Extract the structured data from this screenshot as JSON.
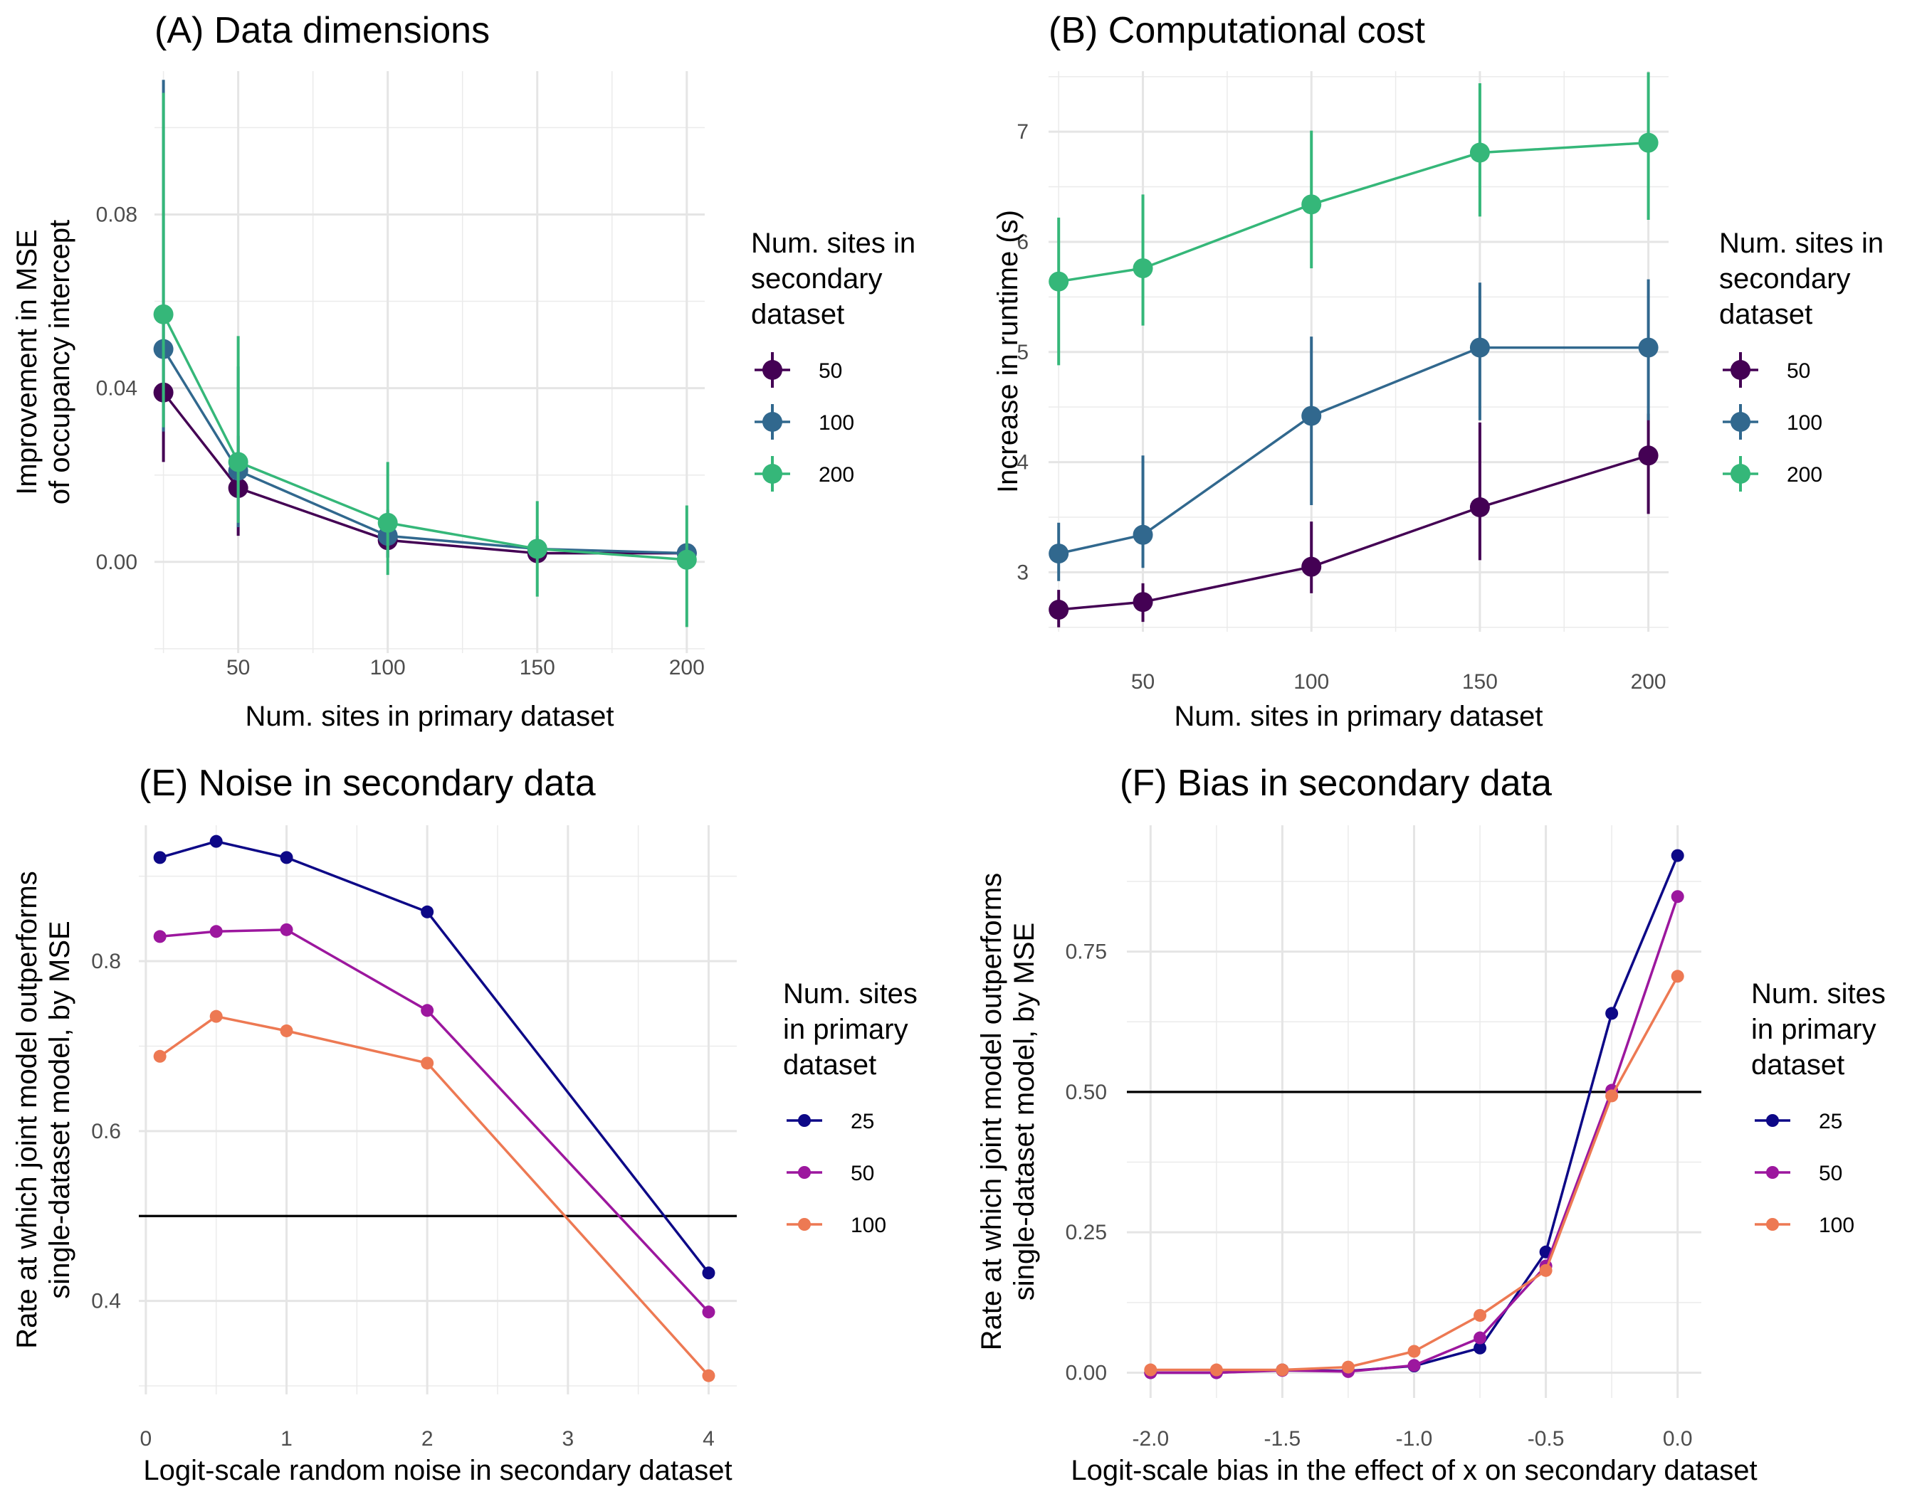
{
  "chart_data": [
    {
      "id": "A",
      "type": "line",
      "title": "(A) Data dimensions",
      "xlabel": "Num. sites in primary dataset",
      "ylabel": [
        "Improvement in MSE",
        "of occupancy intercept"
      ],
      "xlim": [
        22,
        206
      ],
      "ylim": [
        -0.021,
        0.113
      ],
      "xticks": [
        50,
        100,
        150,
        200
      ],
      "yticks": [
        0.0,
        0.04,
        0.08
      ],
      "ytick_labels": [
        "0.00",
        "0.04",
        "0.08"
      ],
      "grid": true,
      "error_bars": true,
      "legend": {
        "title": [
          "Num. sites in",
          "secondary",
          "dataset"
        ],
        "position": "right"
      },
      "x": [
        25,
        50,
        100,
        150,
        200
      ],
      "series": [
        {
          "name": "50",
          "color": "#440154",
          "values": [
            0.039,
            0.017,
            0.005,
            0.002,
            0.002
          ],
          "lower": [
            0.023,
            0.006,
            0.001,
            0.0005,
            0.001
          ],
          "upper": [
            0.055,
            0.029,
            0.01,
            0.004,
            0.004
          ]
        },
        {
          "name": "100",
          "color": "#31688E",
          "values": [
            0.049,
            0.021,
            0.006,
            0.003,
            0.002
          ],
          "lower": [
            0.03,
            0.008,
            0.001,
            0.001,
            0.001
          ],
          "upper": [
            0.111,
            0.045,
            0.012,
            0.006,
            0.004
          ]
        },
        {
          "name": "200",
          "color": "#35B779",
          "values": [
            0.057,
            0.023,
            0.009,
            0.003,
            0.0005
          ],
          "lower": [
            0.031,
            0.009,
            -0.003,
            -0.008,
            -0.015
          ],
          "upper": [
            0.108,
            0.052,
            0.023,
            0.014,
            0.013
          ]
        }
      ]
    },
    {
      "id": "B",
      "type": "line",
      "title": "(B) Computational cost",
      "xlabel": "Num. sites in primary dataset",
      "ylabel": [
        "Increase in runtime (s)"
      ],
      "xlim": [
        22,
        206
      ],
      "ylim": [
        2.46,
        7.55
      ],
      "xticks": [
        50,
        100,
        150,
        200
      ],
      "yticks": [
        3,
        4,
        5,
        6,
        7
      ],
      "ytick_labels": [
        "3",
        "4",
        "5",
        "6",
        "7"
      ],
      "grid": true,
      "error_bars": true,
      "legend": {
        "title": [
          "Num. sites in",
          "secondary",
          "dataset"
        ],
        "position": "right"
      },
      "x": [
        25,
        50,
        100,
        150,
        200
      ],
      "series": [
        {
          "name": "50",
          "color": "#440154",
          "values": [
            2.66,
            2.73,
            3.05,
            3.59,
            4.06
          ],
          "lower": [
            2.5,
            2.55,
            2.81,
            3.11,
            3.53
          ],
          "upper": [
            2.84,
            2.9,
            3.46,
            4.36,
            4.44
          ]
        },
        {
          "name": "100",
          "color": "#31688E",
          "values": [
            3.17,
            3.34,
            4.42,
            5.04,
            5.04
          ],
          "lower": [
            2.92,
            3.04,
            3.61,
            4.38,
            4.38
          ],
          "upper": [
            3.45,
            4.06,
            5.14,
            5.63,
            5.66
          ]
        },
        {
          "name": "200",
          "color": "#35B779",
          "values": [
            5.64,
            5.76,
            6.34,
            6.81,
            6.9
          ],
          "lower": [
            4.88,
            5.24,
            5.76,
            6.23,
            6.2
          ],
          "upper": [
            6.22,
            6.43,
            7.01,
            7.44,
            7.54
          ]
        }
      ]
    },
    {
      "id": "E",
      "type": "line",
      "title": "(E) Noise in secondary data",
      "xlabel": "Logit-scale random noise in secondary dataset",
      "ylabel": [
        "Rate at which joint model outperforms",
        "single-dataset model, by MSE"
      ],
      "xlim": [
        -0.05,
        4.2
      ],
      "ylim": [
        0.29,
        0.96
      ],
      "xticks": [
        0,
        1,
        2,
        3,
        4
      ],
      "yticks": [
        0.4,
        0.6,
        0.8
      ],
      "ytick_labels": [
        "0.4",
        "0.6",
        "0.8"
      ],
      "grid": true,
      "hline": 0.5,
      "legend": {
        "title": [
          "Num. sites",
          "in primary",
          "dataset"
        ],
        "position": "right"
      },
      "x": [
        0.1,
        0.5,
        1,
        2,
        4
      ],
      "series": [
        {
          "name": "25",
          "color": "#0D0887",
          "values": [
            0.922,
            0.941,
            0.922,
            0.858,
            0.433
          ]
        },
        {
          "name": "50",
          "color": "#9C179E",
          "values": [
            0.829,
            0.835,
            0.837,
            0.742,
            0.387
          ]
        },
        {
          "name": "100",
          "color": "#ED7953",
          "values": [
            0.688,
            0.735,
            0.718,
            0.68,
            0.312
          ]
        }
      ]
    },
    {
      "id": "F",
      "type": "line",
      "title": "(F) Bias in secondary data",
      "xlabel": "Logit-scale bias in the effect of x on secondary dataset",
      "ylabel": [
        "Rate at which joint model outperforms",
        "single-dataset model, by MSE"
      ],
      "xlim": [
        -2.09,
        0.09
      ],
      "ylim": [
        -0.045,
        0.975
      ],
      "xticks": [
        -2.0,
        -1.5,
        -1.0,
        -0.5,
        0.0
      ],
      "xtick_labels": [
        "-2.0",
        "-1.5",
        "-1.0",
        "-0.5",
        "0.0"
      ],
      "yticks": [
        0.0,
        0.25,
        0.5,
        0.75
      ],
      "ytick_labels": [
        "0.00",
        "0.25",
        "0.50",
        "0.75"
      ],
      "grid": true,
      "hline": 0.5,
      "legend": {
        "title": [
          "Num. sites",
          "in primary",
          "dataset"
        ],
        "position": "right"
      },
      "x": [
        -2.0,
        -1.75,
        -1.5,
        -1.25,
        -1.0,
        -0.75,
        -0.5,
        -0.25,
        0.0
      ],
      "series": [
        {
          "name": "25",
          "color": "#0D0887",
          "values": [
            0.0,
            0.0,
            0.005,
            0.003,
            0.012,
            0.044,
            0.215,
            0.64,
            0.921
          ]
        },
        {
          "name": "50",
          "color": "#9C179E",
          "values": [
            0.0,
            0.0,
            0.004,
            0.002,
            0.013,
            0.062,
            0.19,
            0.503,
            0.848
          ]
        },
        {
          "name": "100",
          "color": "#ED7953",
          "values": [
            0.005,
            0.005,
            0.005,
            0.01,
            0.038,
            0.102,
            0.182,
            0.493,
            0.706
          ]
        }
      ]
    }
  ]
}
